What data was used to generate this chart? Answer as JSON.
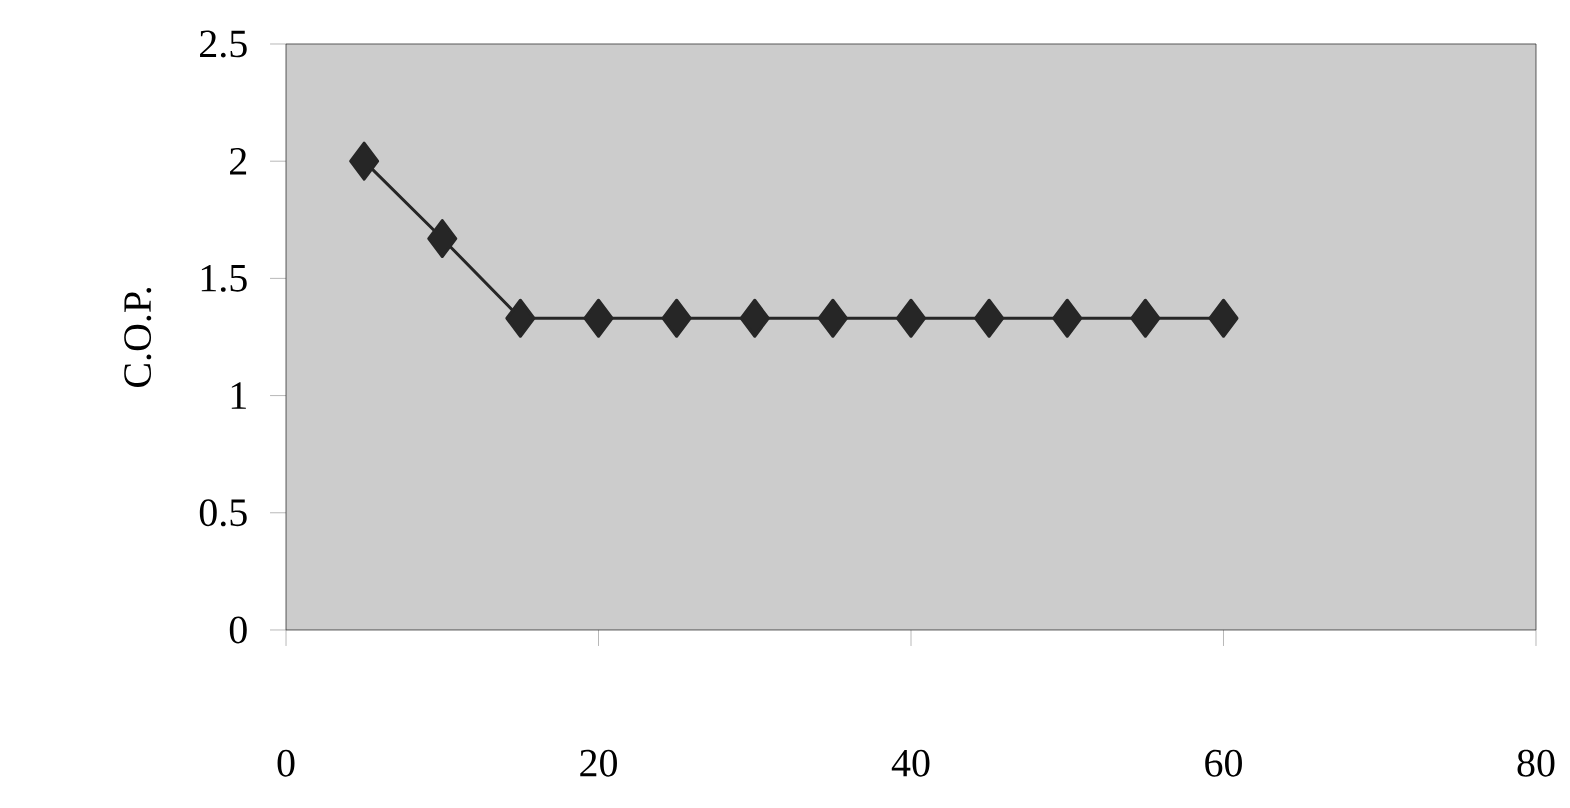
{
  "chart_data": {
    "type": "line",
    "ylabel": "C.O.P.",
    "x": [
      5,
      10,
      15,
      20,
      25,
      30,
      35,
      40,
      45,
      50,
      55,
      60
    ],
    "series": [
      {
        "color": "#262626",
        "values": [
          2,
          1.67,
          1.33,
          1.33,
          1.33,
          1.33,
          1.33,
          1.33,
          1.33,
          1.33,
          1.33,
          1.33
        ]
      }
    ],
    "xlim": [
      0,
      80
    ],
    "xticks": [
      0,
      20,
      40,
      60,
      80
    ],
    "ylim": [
      0,
      2.5
    ],
    "yticks": [
      0,
      0.5,
      1,
      1.5,
      2,
      2.5
    ],
    "marker": "diamond",
    "line_style": "solid"
  }
}
